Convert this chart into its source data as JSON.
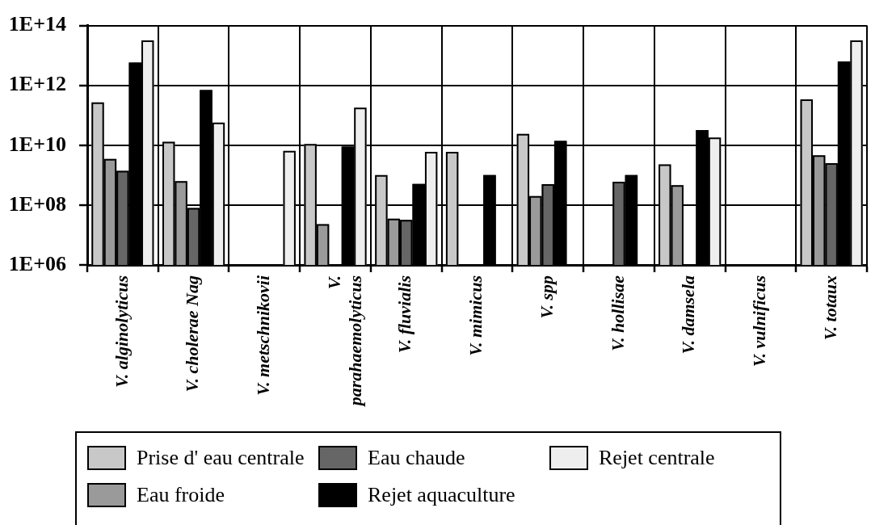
{
  "chart_data": {
    "type": "bar",
    "log": true,
    "grid": true,
    "legend": "bottom",
    "categories": [
      "V. alginolyticus",
      "V. cholerae Nag",
      "V. metschnikovii",
      "V. parahaemolyticus",
      "V. fluvialis",
      "V. mimicus",
      "V. spp",
      "V. hollisae",
      "V. damsela",
      "V. vulnificus",
      "V. totaux"
    ],
    "ylim": [
      1000000.0,
      100000000000000.0
    ],
    "yticks": [
      {
        "value": 1000000.0,
        "label": "1E+06"
      },
      {
        "value": 100000000.0,
        "label": "1E+08"
      },
      {
        "value": 10000000000.0,
        "label": "1E+10"
      },
      {
        "value": 1000000000000.0,
        "label": "1E+12"
      },
      {
        "value": 100000000000000.0,
        "label": "1E+14"
      }
    ],
    "series": [
      {
        "name": "Prise d' eau centrale",
        "color": "#c8c8c8",
        "values": [
          270000000000.0,
          13000000000.0,
          null,
          11000000000.0,
          1000000000.0,
          6000000000.0,
          24000000000.0,
          null,
          2300000000.0,
          null,
          340000000000.0
        ]
      },
      {
        "name": "Eau froide",
        "color": "#9a9a9a",
        "values": [
          3500000000.0,
          630000000.0,
          null,
          23000000.0,
          35000000.0,
          null,
          200000000.0,
          null,
          460000000.0,
          null,
          4600000000.0
        ]
      },
      {
        "name": "Eau chaude",
        "color": "#666666",
        "values": [
          1400000000.0,
          80000000.0,
          null,
          null,
          32000000.0,
          null,
          500000000.0,
          600000000.0,
          null,
          null,
          2500000000.0
        ]
      },
      {
        "name": "Rejet aquaculture",
        "color": "#000000",
        "values": [
          5800000000000.0,
          700000000000.0,
          null,
          9000000000.0,
          510000000.0,
          1000000000.0,
          14000000000.0,
          1000000000.0,
          32000000000.0,
          null,
          6200000000000.0
        ]
      },
      {
        "name": "Rejet centrale",
        "color": "#eeeeee",
        "values": [
          32000000000000.0,
          57000000000.0,
          6500000000.0,
          180000000000.0,
          6000000000.0,
          null,
          null,
          null,
          18000000000.0,
          null,
          32000000000000.0
        ]
      }
    ]
  }
}
